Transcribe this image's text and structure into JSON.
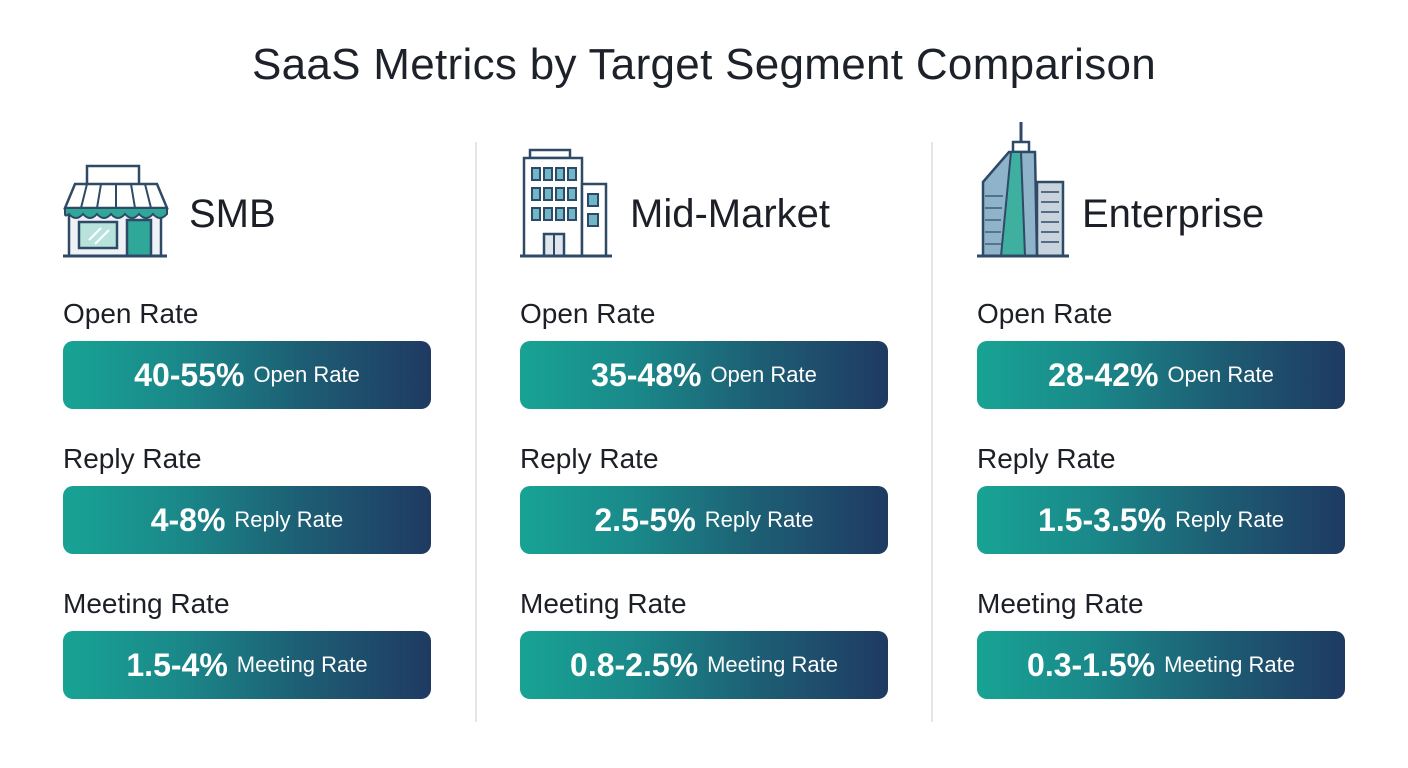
{
  "title": "SaaS Metrics by Target Segment Comparison",
  "colors": {
    "accent_start": "#17a394",
    "accent_end": "#1f3a62",
    "icon_stroke": "#2f4a66",
    "icon_teal": "#1fa597"
  },
  "segments": [
    {
      "name": "SMB",
      "icon": "storefront-icon",
      "metrics": [
        {
          "label": "Open Rate",
          "value": "40-55%",
          "unit": "Open Rate"
        },
        {
          "label": "Reply Rate",
          "value": "4-8%",
          "unit": "Reply Rate"
        },
        {
          "label": "Meeting Rate",
          "value": "1.5-4%",
          "unit": "Meeting Rate"
        }
      ]
    },
    {
      "name": "Mid-Market",
      "icon": "office-building-icon",
      "metrics": [
        {
          "label": "Open Rate",
          "value": "35-48%",
          "unit": "Open Rate"
        },
        {
          "label": "Reply Rate",
          "value": "2.5-5%",
          "unit": "Reply Rate"
        },
        {
          "label": "Meeting Rate",
          "value": "0.8-2.5%",
          "unit": "Meeting Rate"
        }
      ]
    },
    {
      "name": "Enterprise",
      "icon": "skyscraper-icon",
      "metrics": [
        {
          "label": "Open Rate",
          "value": "28-42%",
          "unit": "Open Rate"
        },
        {
          "label": "Reply Rate",
          "value": "1.5-3.5%",
          "unit": "Reply Rate"
        },
        {
          "label": "Meeting Rate",
          "value": "0.3-1.5%",
          "unit": "Meeting Rate"
        }
      ]
    }
  ]
}
